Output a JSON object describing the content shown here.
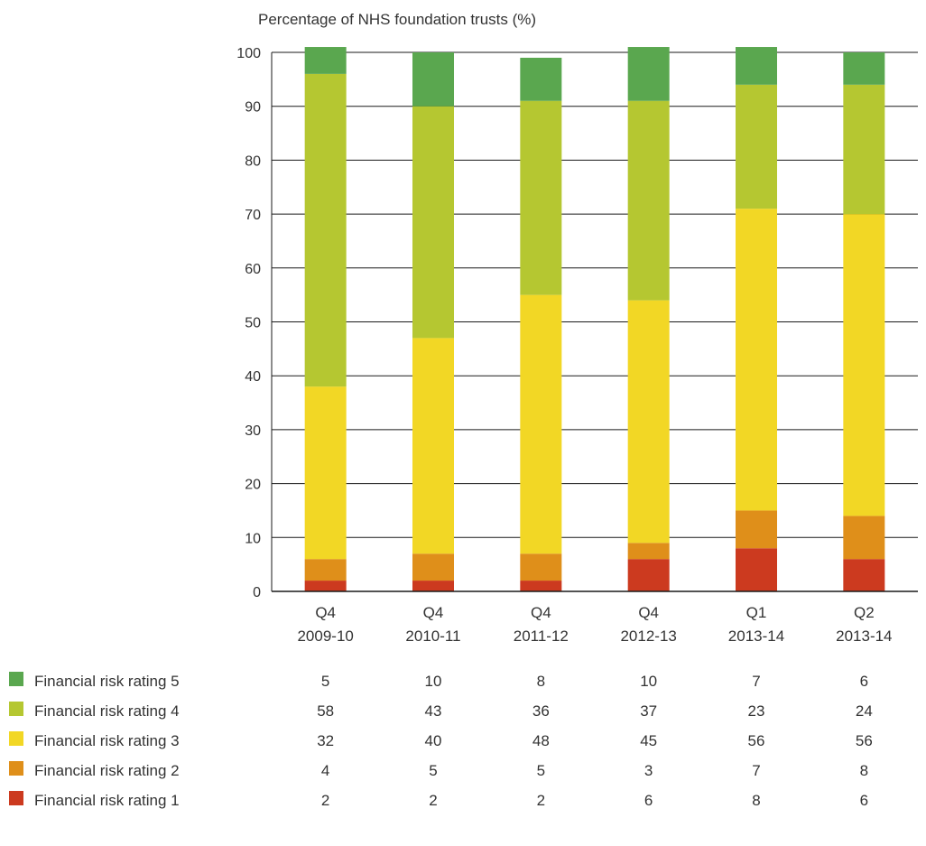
{
  "chart_data": {
    "type": "bar",
    "stacked": true,
    "ylabel": "Percentage of NHS foundation trusts (%)",
    "ylim": [
      0,
      100
    ],
    "yticks": [
      "0",
      "10",
      "20",
      "30",
      "40",
      "50",
      "60",
      "70",
      "80",
      "90",
      "100"
    ],
    "grid": true,
    "categories": [
      {
        "line1": "Q4",
        "line2": "2009-10"
      },
      {
        "line1": "Q4",
        "line2": "2010-11"
      },
      {
        "line1": "Q4",
        "line2": "2011-12"
      },
      {
        "line1": "Q4",
        "line2": "2012-13"
      },
      {
        "line1": "Q1",
        "line2": "2013-14"
      },
      {
        "line1": "Q2",
        "line2": "2013-14"
      }
    ],
    "series": [
      {
        "name": "Financial risk rating 1",
        "color": "#cc3a1f",
        "values": [
          2,
          2,
          2,
          6,
          8,
          6
        ]
      },
      {
        "name": "Financial risk rating 2",
        "color": "#df8f1a",
        "values": [
          4,
          5,
          5,
          3,
          7,
          8
        ]
      },
      {
        "name": "Financial risk rating 3",
        "color": "#f2d725",
        "values": [
          32,
          40,
          48,
          45,
          56,
          56
        ]
      },
      {
        "name": "Financial risk rating 4",
        "color": "#b5c731",
        "values": [
          58,
          43,
          36,
          37,
          23,
          24
        ]
      },
      {
        "name": "Financial risk rating 5",
        "color": "#5aa74f",
        "values": [
          5,
          10,
          8,
          10,
          7,
          6
        ]
      }
    ],
    "table_row_order": [
      4,
      3,
      2,
      1,
      0
    ]
  }
}
